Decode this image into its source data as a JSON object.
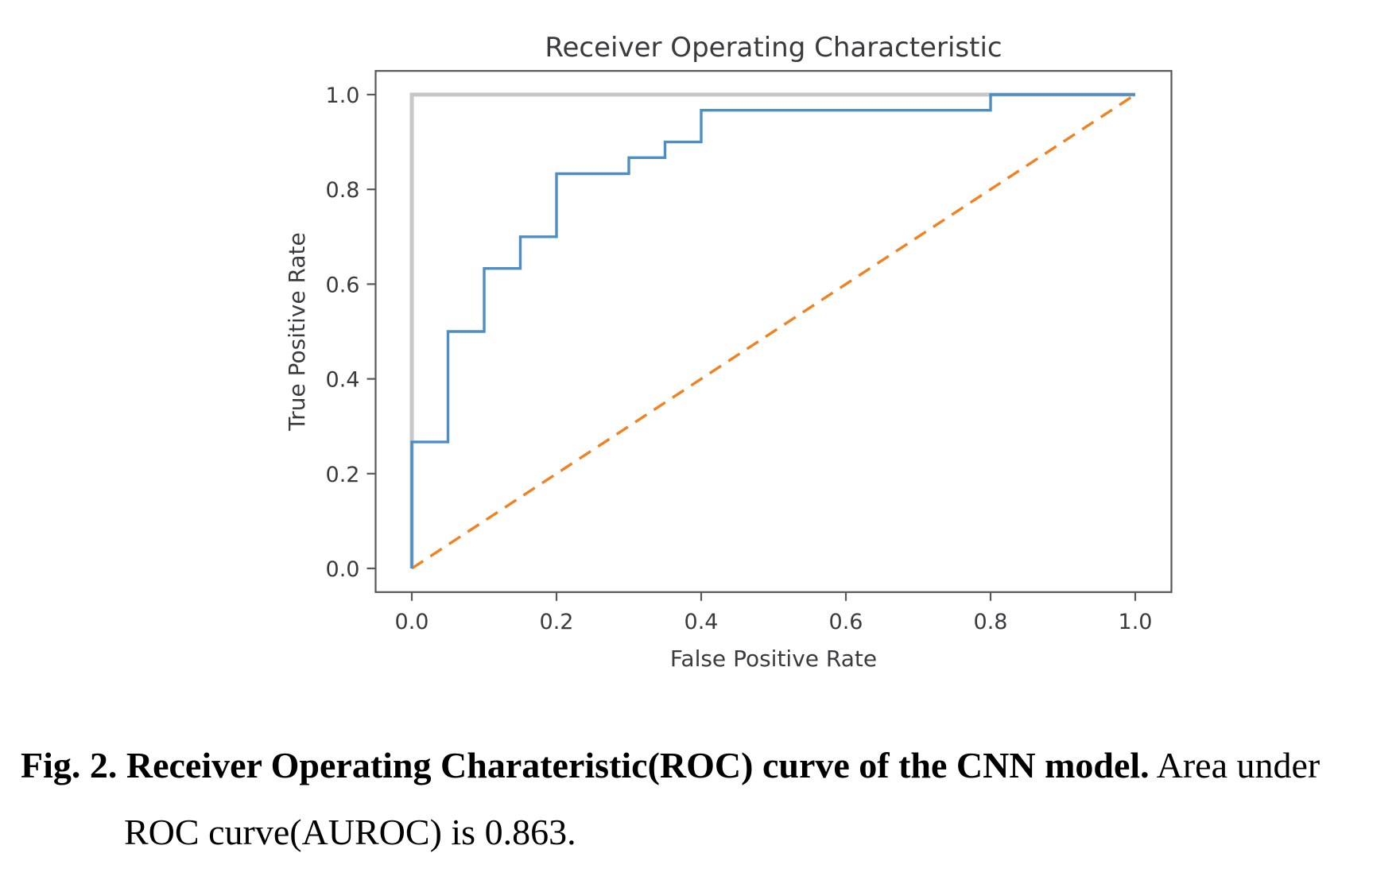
{
  "figure": {
    "title": "Receiver Operating Characteristic",
    "xlabel": "False Positive Rate",
    "ylabel": "True Positive Rate"
  },
  "caption": {
    "bold_text": "Fig. 2. Receiver Operating Charateristic(ROC) curve of the CNN model.",
    "regular_text": " Area under",
    "line2_text": "ROC curve(AUROC) is 0.863."
  },
  "chart_data": {
    "type": "line",
    "title": "Receiver Operating Characteristic",
    "xlabel": "False Positive Rate",
    "ylabel": "True Positive Rate",
    "xlim": [
      -0.05,
      1.05
    ],
    "ylim": [
      -0.05,
      1.05
    ],
    "grid": false,
    "legend": false,
    "auroc": 0.863,
    "x_ticks": [
      {
        "v": 0.0,
        "label": "0.0"
      },
      {
        "v": 0.2,
        "label": "0.2"
      },
      {
        "v": 0.4,
        "label": "0.4"
      },
      {
        "v": 0.6,
        "label": "0.6"
      },
      {
        "v": 0.8,
        "label": "0.8"
      },
      {
        "v": 1.0,
        "label": "1.0"
      }
    ],
    "y_ticks": [
      {
        "v": 0.0,
        "label": "0.0"
      },
      {
        "v": 0.2,
        "label": "0.2"
      },
      {
        "v": 0.4,
        "label": "0.4"
      },
      {
        "v": 0.6,
        "label": "0.6"
      },
      {
        "v": 0.8,
        "label": "0.8"
      },
      {
        "v": 1.0,
        "label": "1.0"
      }
    ],
    "colors": {
      "roc": "#4d8fc3",
      "diagonal": "#f28122",
      "reference": "#c7c7c7",
      "spine": "#57585a",
      "text": "#3b3b3d"
    },
    "series": [
      {
        "name": "perfect-classifier",
        "color": "#c7c7c7",
        "style": "solid",
        "width": 5,
        "points": [
          [
            0,
            0
          ],
          [
            0,
            1
          ],
          [
            1,
            1
          ]
        ]
      },
      {
        "name": "chance-diagonal",
        "color": "#f28122",
        "style": "dashed",
        "width": 3.4,
        "points": [
          [
            0,
            0
          ],
          [
            1,
            1
          ]
        ]
      },
      {
        "name": "roc-curve",
        "color": "#4d8fc3",
        "style": "solid",
        "width": 3.4,
        "points": [
          [
            0,
            0
          ],
          [
            0,
            0.267
          ],
          [
            0.05,
            0.267
          ],
          [
            0.05,
            0.5
          ],
          [
            0.1,
            0.5
          ],
          [
            0.1,
            0.633
          ],
          [
            0.15,
            0.633
          ],
          [
            0.15,
            0.7
          ],
          [
            0.2,
            0.7
          ],
          [
            0.2,
            0.833
          ],
          [
            0.3,
            0.833
          ],
          [
            0.3,
            0.867
          ],
          [
            0.35,
            0.867
          ],
          [
            0.35,
            0.9
          ],
          [
            0.4,
            0.9
          ],
          [
            0.4,
            0.967
          ],
          [
            0.8,
            0.967
          ],
          [
            0.8,
            1.0
          ],
          [
            1.0,
            1.0
          ]
        ]
      }
    ]
  }
}
